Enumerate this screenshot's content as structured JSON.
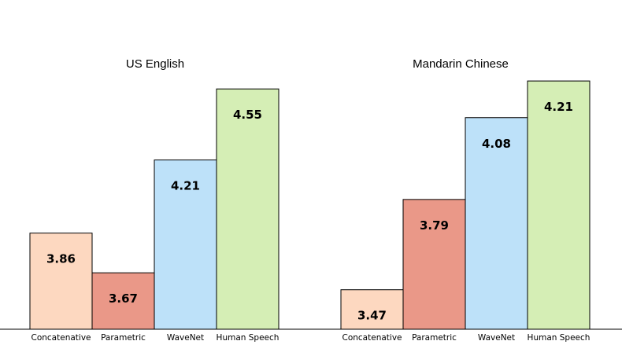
{
  "chart_data": [
    {
      "type": "bar",
      "title": "US English",
      "categories": [
        "Concatenative",
        "Parametric",
        "WaveNet",
        "Human Speech"
      ],
      "values": [
        3.86,
        3.67,
        4.21,
        4.55
      ],
      "value_labels": [
        "3.86",
        "3.67",
        "4.21",
        "4.55"
      ],
      "colors": [
        "#fdd8c0",
        "#ea9888",
        "#bde1f9",
        "#d5eeb5"
      ],
      "ylim": [
        3.4,
        4.75
      ],
      "grid": false,
      "legend": "none"
    },
    {
      "type": "bar",
      "title": "Mandarin Chinese",
      "categories": [
        "Concatenative",
        "Parametric",
        "WaveNet",
        "Human Speech"
      ],
      "values": [
        3.47,
        3.79,
        4.08,
        4.21
      ],
      "value_labels": [
        "3.47",
        "3.79",
        "4.08",
        "4.21"
      ],
      "colors": [
        "#fdd8c0",
        "#ea9888",
        "#bde1f9",
        "#d5eeb5"
      ],
      "ylim": [
        3.33,
        4.33
      ],
      "grid": false,
      "legend": "none"
    }
  ]
}
